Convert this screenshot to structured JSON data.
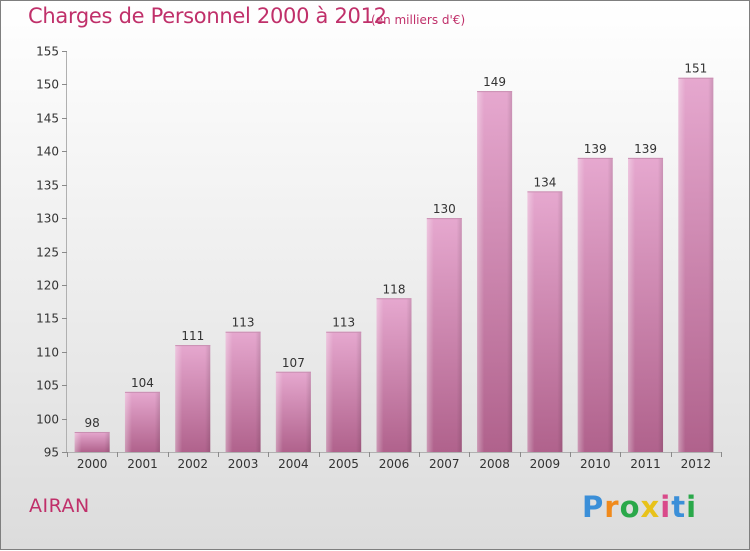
{
  "title": "Charges de Personnel 2000 à 2012",
  "subtitle": "(en milliers d'€)",
  "commune": "AIRAN",
  "logo": {
    "letters": [
      "P",
      "r",
      "o",
      "x",
      "i",
      "t",
      "i"
    ]
  },
  "colors": {
    "accent": "#c0306a",
    "bar_top": "#e6a8cf",
    "bar_bottom": "#b0628c"
  },
  "chart_data": {
    "type": "bar",
    "categories": [
      "2000",
      "2001",
      "2002",
      "2003",
      "2004",
      "2005",
      "2006",
      "2007",
      "2008",
      "2009",
      "2010",
      "2011",
      "2012"
    ],
    "values": [
      98,
      104,
      111,
      113,
      107,
      113,
      118,
      130,
      149,
      134,
      139,
      139,
      151
    ],
    "ylim": [
      95,
      155
    ],
    "yticks": [
      95,
      100,
      105,
      110,
      115,
      120,
      125,
      130,
      135,
      140,
      145,
      150,
      155
    ],
    "grid": false,
    "xlabel": "",
    "ylabel": ""
  }
}
